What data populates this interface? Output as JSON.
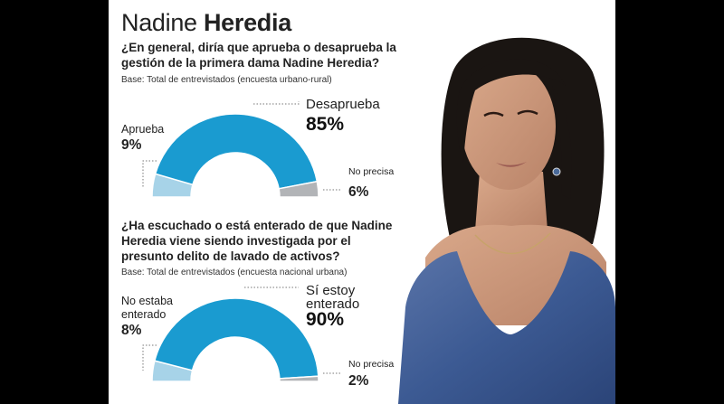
{
  "header": {
    "title_light": "Nadine",
    "title_bold": "Heredia"
  },
  "chart_data": [
    {
      "type": "pie",
      "title": "¿En general, diría que aprueba o desaprueba la gestión de la primera dama Nadine Heredia?",
      "subtitle": "Base: Total de entrevistados (encuesta urbano-rural)",
      "categories": [
        "Aprueba",
        "Desaprueba",
        "No precisa"
      ],
      "values": [
        9,
        85,
        6
      ],
      "value_labels": [
        "9%",
        "85%",
        "6%"
      ],
      "label_lines": [
        [
          "Aprueba"
        ],
        [
          "Desaprueba"
        ],
        [
          "No precisa"
        ]
      ],
      "colors": [
        "#a7d3e8",
        "#1a9bd0",
        "#b2b4b7"
      ],
      "shape": "half-donut"
    },
    {
      "type": "pie",
      "title": "¿Ha escuchado o está enterado de que Nadine Heredia viene siendo investigada por el presunto delito de lavado de activos?",
      "subtitle": "Base: Total de entrevistados (encuesta nacional urbana)",
      "categories": [
        "No estaba enterado",
        "Sí estoy enterado",
        "No precisa"
      ],
      "values": [
        8,
        90,
        2
      ],
      "value_labels": [
        "8%",
        "90%",
        "2%"
      ],
      "label_lines": [
        [
          "No estaba",
          "enterado"
        ],
        [
          "Sí estoy",
          "enterado"
        ],
        [
          "No precisa"
        ]
      ],
      "colors": [
        "#a7d3e8",
        "#1a9bd0",
        "#b2b4b7"
      ],
      "shape": "half-donut"
    }
  ]
}
